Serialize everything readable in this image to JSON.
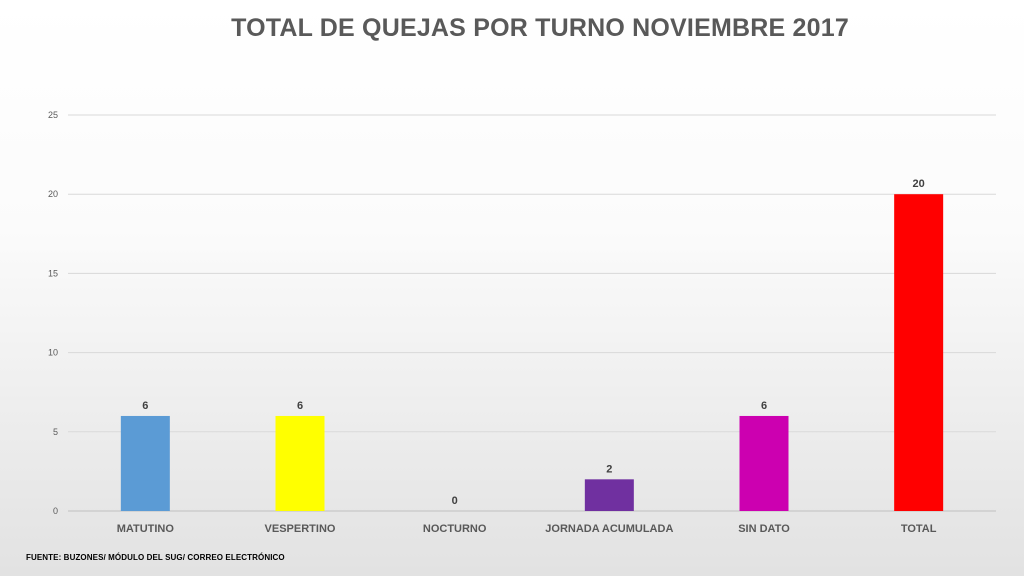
{
  "chart_data": {
    "type": "bar",
    "title": "TOTAL DE QUEJAS POR TURNO NOVIEMBRE 2017",
    "categories": [
      "MATUTINO",
      "VESPERTINO",
      "NOCTURNO",
      "JORNADA ACUMULADA",
      "SIN DATO",
      "TOTAL"
    ],
    "values": [
      6,
      6,
      0,
      2,
      6,
      20
    ],
    "colors": [
      "#5b9bd5",
      "#ffff00",
      "#7f7f7f",
      "#7030a0",
      "#cc00b0",
      "#ff0000"
    ],
    "ylim": [
      0,
      25
    ],
    "yticks": [
      0,
      5,
      10,
      15,
      20,
      25
    ],
    "grid": true,
    "data_labels": true
  },
  "source": "FUENTE: BUZONES/ MÓDULO DEL SUG/ CORREO ELECTRÓNICO"
}
